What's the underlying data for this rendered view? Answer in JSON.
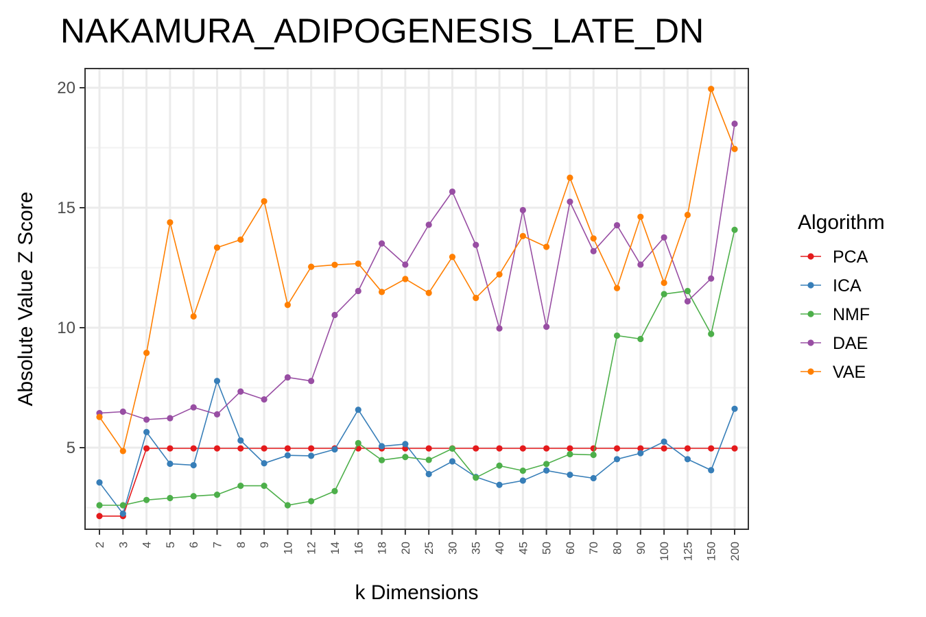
{
  "chart_data": {
    "type": "line",
    "title": "NAKAMURA_ADIPOGENESIS_LATE_DN",
    "xlabel": "k Dimensions",
    "ylabel": "Absolute Value Z Score",
    "categories": [
      "2",
      "3",
      "4",
      "5",
      "6",
      "7",
      "8",
      "9",
      "10",
      "12",
      "14",
      "16",
      "18",
      "20",
      "25",
      "30",
      "35",
      "40",
      "45",
      "50",
      "60",
      "70",
      "80",
      "90",
      "100",
      "125",
      "150",
      "200"
    ],
    "ylim": [
      1.6,
      20.8
    ],
    "yticks": [
      5,
      10,
      15,
      20
    ],
    "ytick_labels": [
      "5",
      "10",
      "15",
      "20"
    ],
    "grid": true,
    "legend": {
      "title": "Algorithm",
      "position": "right"
    },
    "series": [
      {
        "name": "PCA",
        "color": "#e41a1c",
        "values": [
          2.15,
          2.15,
          4.97,
          4.97,
          4.97,
          4.97,
          4.97,
          4.97,
          4.97,
          4.97,
          4.97,
          4.97,
          4.97,
          4.97,
          4.97,
          4.97,
          4.97,
          4.97,
          4.97,
          4.97,
          4.97,
          4.97,
          4.97,
          4.97,
          4.97,
          4.97,
          4.97,
          4.97
        ]
      },
      {
        "name": "ICA",
        "color": "#377eb8",
        "values": [
          3.55,
          2.25,
          5.65,
          4.33,
          4.27,
          7.78,
          5.3,
          4.35,
          4.68,
          4.66,
          4.93,
          6.58,
          5.06,
          5.15,
          3.9,
          4.43,
          3.78,
          3.45,
          3.63,
          4.05,
          3.87,
          3.73,
          4.52,
          4.77,
          5.25,
          4.52,
          4.06,
          6.62
        ]
      },
      {
        "name": "NMF",
        "color": "#4daf4a",
        "values": [
          2.6,
          2.6,
          2.82,
          2.9,
          2.98,
          3.04,
          3.41,
          3.41,
          2.6,
          2.77,
          3.19,
          5.19,
          4.48,
          4.61,
          4.49,
          4.96,
          3.75,
          4.25,
          4.04,
          4.32,
          4.73,
          4.7,
          9.67,
          9.53,
          11.4,
          11.53,
          9.74,
          14.08
        ]
      },
      {
        "name": "DAE",
        "color": "#984ea3",
        "values": [
          6.44,
          6.5,
          6.17,
          6.23,
          6.68,
          6.39,
          7.34,
          7.01,
          7.93,
          7.78,
          10.53,
          11.53,
          13.51,
          12.63,
          14.29,
          15.67,
          13.45,
          9.97,
          14.9,
          10.04,
          15.25,
          13.19,
          14.27,
          12.63,
          13.76,
          11.1,
          12.05,
          18.5
        ]
      },
      {
        "name": "VAE",
        "color": "#ff7f00",
        "values": [
          6.28,
          4.86,
          8.95,
          14.39,
          10.47,
          13.34,
          13.67,
          15.27,
          10.95,
          12.54,
          12.62,
          12.67,
          11.49,
          12.03,
          11.45,
          12.95,
          11.24,
          12.22,
          13.82,
          13.37,
          16.25,
          13.72,
          11.65,
          14.62,
          11.87,
          14.7,
          19.95,
          17.45
        ]
      }
    ]
  }
}
